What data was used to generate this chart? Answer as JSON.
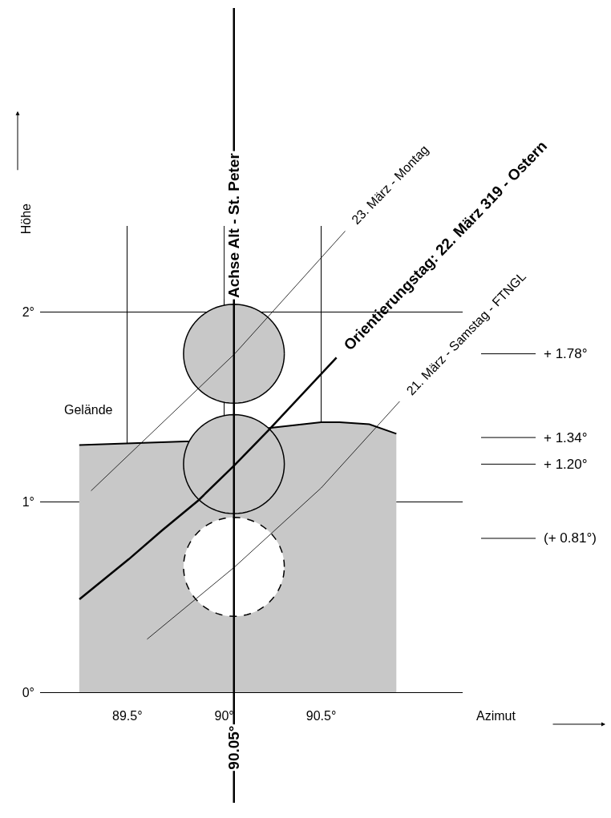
{
  "chart_data": {
    "type": "line",
    "xlabel": "Azimut",
    "ylabel": "Höhe",
    "xlim": [
      89.05,
      91.23
    ],
    "ylim": [
      0,
      2.45
    ],
    "xticks": [
      {
        "value": 89.5,
        "label": "89.5°"
      },
      {
        "value": 90,
        "label": "90°"
      },
      {
        "value": 90.5,
        "label": "90.5°"
      }
    ],
    "yticks": [
      {
        "value": 0,
        "label": "0°"
      },
      {
        "value": 1,
        "label": "1°"
      },
      {
        "value": 2,
        "label": "2°"
      }
    ],
    "grid": true,
    "series": [
      {
        "name": "Gelände",
        "type": "area",
        "color": "#c8c8c8",
        "x": [
          89.252,
          89.826,
          90.054,
          90.12,
          90.231,
          90.5,
          90.595,
          90.748,
          90.888
        ],
        "values": [
          1.3,
          1.32,
          1.34,
          1.35,
          1.39,
          1.42,
          1.42,
          1.41,
          1.36
        ]
      },
      {
        "name": "Orientierungstag: 22. März 319 - Ostern",
        "color": "#000000",
        "x": [
          89.253,
          89.507,
          89.677,
          89.867,
          90.053,
          90.23,
          90.579
        ],
        "values": [
          0.49,
          0.7,
          0.85,
          1.01,
          1.195,
          1.38,
          1.76
        ]
      },
      {
        "name": "23. März - Montag",
        "color": "#000000",
        "x": [
          89.313,
          90.054,
          90.624
        ],
        "values": [
          1.06,
          1.78,
          2.425
        ]
      },
      {
        "name": "21. März - Samstag - FTNGL",
        "color": "#000000",
        "x": [
          89.602,
          90.054,
          90.5,
          90.905
        ],
        "values": [
          0.28,
          0.66,
          1.075,
          1.53
        ]
      },
      {
        "type": "bubble",
        "color": "#c8c8c8",
        "x": [
          90.05,
          90.05
        ],
        "values": [
          1.78,
          1.2
        ],
        "sizes": [
          1,
          1
        ],
        "line_style": "solid"
      },
      {
        "type": "bubble",
        "color": "#ffffff",
        "x": [
          90.05
        ],
        "values": [
          0.66
        ],
        "sizes": [
          1
        ],
        "line_style": "dashed"
      }
    ],
    "ref_lines": [
      {
        "axis": "x",
        "value": 90.05,
        "label": "Achse Alt - St. Peter",
        "color": "#000000"
      },
      {
        "axis": "y",
        "value": 1.78,
        "label": "+ 1.78°",
        "color": "#000000"
      },
      {
        "axis": "y",
        "value": 1.34,
        "label": "+ 1.34°",
        "color": "#000000"
      },
      {
        "axis": "y",
        "value": 1.2,
        "label": "+ 1.20°",
        "color": "#000000"
      },
      {
        "axis": "y",
        "value": 0.81,
        "label": "(+ 0.81°)",
        "color": "#000000"
      }
    ],
    "annotations": [
      {
        "text": "90.05°",
        "x": 90.05
      }
    ]
  }
}
